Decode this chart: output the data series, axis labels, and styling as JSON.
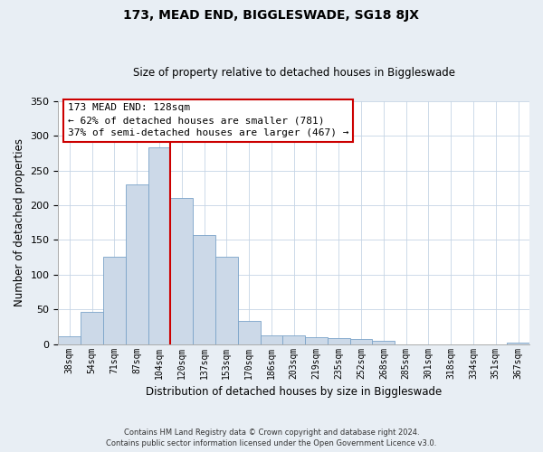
{
  "title": "173, MEAD END, BIGGLESWADE, SG18 8JX",
  "subtitle": "Size of property relative to detached houses in Biggleswade",
  "xlabel": "Distribution of detached houses by size in Biggleswade",
  "ylabel": "Number of detached properties",
  "bin_labels": [
    "38sqm",
    "54sqm",
    "71sqm",
    "87sqm",
    "104sqm",
    "120sqm",
    "137sqm",
    "153sqm",
    "170sqm",
    "186sqm",
    "203sqm",
    "219sqm",
    "235sqm",
    "252sqm",
    "268sqm",
    "285sqm",
    "301sqm",
    "318sqm",
    "334sqm",
    "351sqm",
    "367sqm"
  ],
  "bar_heights": [
    11,
    46,
    126,
    230,
    283,
    210,
    157,
    126,
    33,
    13,
    12,
    10,
    8,
    7,
    5,
    0,
    0,
    0,
    0,
    0,
    2
  ],
  "bar_color": "#ccd9e8",
  "bar_edge_color": "#7aa3c8",
  "vline_x_index": 4.5,
  "vline_color": "#cc0000",
  "ylim": [
    0,
    350
  ],
  "yticks": [
    0,
    50,
    100,
    150,
    200,
    250,
    300,
    350
  ],
  "annotation_title": "173 MEAD END: 128sqm",
  "annotation_line1": "← 62% of detached houses are smaller (781)",
  "annotation_line2": "37% of semi-detached houses are larger (467) →",
  "annotation_box_color": "#ffffff",
  "annotation_box_edge": "#cc0000",
  "footnote1": "Contains HM Land Registry data © Crown copyright and database right 2024.",
  "footnote2": "Contains public sector information licensed under the Open Government Licence v3.0.",
  "background_color": "#e8eef4",
  "plot_background_color": "#ffffff",
  "grid_color": "#c5d5e5"
}
